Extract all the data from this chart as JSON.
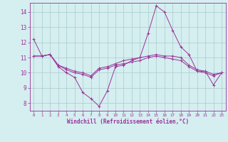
{
  "x": [
    0,
    1,
    2,
    3,
    4,
    5,
    6,
    7,
    8,
    9,
    10,
    11,
    12,
    13,
    14,
    15,
    16,
    17,
    18,
    19,
    20,
    21,
    22,
    23
  ],
  "line1": [
    12.2,
    11.1,
    11.2,
    10.4,
    10.0,
    9.7,
    8.7,
    8.3,
    7.8,
    8.8,
    10.4,
    10.5,
    10.8,
    11.0,
    12.6,
    14.4,
    14.0,
    12.8,
    11.7,
    11.2,
    10.1,
    10.1,
    9.2,
    10.0
  ],
  "line2": [
    11.1,
    11.1,
    11.2,
    10.5,
    10.3,
    10.1,
    10.0,
    9.8,
    10.3,
    10.4,
    10.6,
    10.8,
    10.9,
    11.0,
    11.1,
    11.2,
    11.1,
    11.1,
    11.0,
    10.5,
    10.2,
    10.1,
    9.9,
    10.0
  ],
  "line3": [
    11.1,
    11.1,
    11.2,
    10.5,
    10.2,
    10.0,
    9.9,
    9.7,
    10.2,
    10.3,
    10.5,
    10.6,
    10.7,
    10.8,
    11.0,
    11.1,
    11.0,
    10.9,
    10.8,
    10.4,
    10.1,
    10.0,
    9.8,
    10.0
  ],
  "color": "#993399",
  "bg_color": "#d5eef0",
  "grid_color": "#aacccc",
  "xlabel": "Windchill (Refroidissement éolien,°C)",
  "ylim": [
    7.5,
    14.6
  ],
  "xlim": [
    -0.5,
    23.5
  ],
  "yticks": [
    8,
    9,
    10,
    11,
    12,
    13,
    14
  ],
  "xticks": [
    0,
    1,
    2,
    3,
    4,
    5,
    6,
    7,
    8,
    9,
    10,
    11,
    12,
    13,
    14,
    15,
    16,
    17,
    18,
    19,
    20,
    21,
    22,
    23
  ]
}
